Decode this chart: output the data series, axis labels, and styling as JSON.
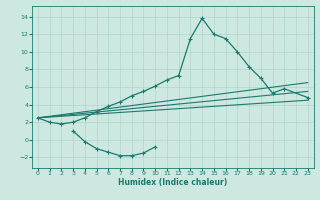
{
  "title": "",
  "xlabel": "Humidex (Indice chaleur)",
  "ylabel": "",
  "bg_color": "#cce8e0",
  "line_color": "#1a7a6e",
  "grid_color": "#aacfc8",
  "xlim": [
    -0.5,
    23.5
  ],
  "ylim": [
    -3.2,
    15.2
  ],
  "xticks": [
    0,
    1,
    2,
    3,
    4,
    5,
    6,
    7,
    8,
    9,
    10,
    11,
    12,
    13,
    14,
    15,
    16,
    17,
    18,
    19,
    20,
    21,
    22,
    23
  ],
  "yticks": [
    -2,
    0,
    2,
    4,
    6,
    8,
    10,
    12,
    14
  ],
  "series": [
    {
      "x": [
        0,
        1,
        2,
        3,
        4,
        5,
        6,
        7,
        8,
        9,
        10,
        11,
        12,
        13,
        14,
        15,
        16,
        17,
        18,
        19,
        20,
        21,
        23
      ],
      "y": [
        2.5,
        2.0,
        1.8,
        2.0,
        2.5,
        3.2,
        3.8,
        4.3,
        5.0,
        5.5,
        6.1,
        6.8,
        7.3,
        11.5,
        13.8,
        12.0,
        11.5,
        10.0,
        8.3,
        7.0,
        5.3,
        5.8,
        4.8
      ],
      "marker": true
    },
    {
      "x": [
        0,
        23
      ],
      "y": [
        2.5,
        4.5
      ],
      "marker": false
    },
    {
      "x": [
        0,
        23
      ],
      "y": [
        2.5,
        5.5
      ],
      "marker": false
    },
    {
      "x": [
        0,
        23
      ],
      "y": [
        2.5,
        6.5
      ],
      "marker": false
    },
    {
      "x": [
        3,
        4,
        5,
        6,
        7,
        8,
        9,
        10
      ],
      "y": [
        1.0,
        -0.2,
        -1.0,
        -1.4,
        -1.8,
        -1.8,
        -1.5,
        -0.8
      ],
      "marker": true
    }
  ]
}
